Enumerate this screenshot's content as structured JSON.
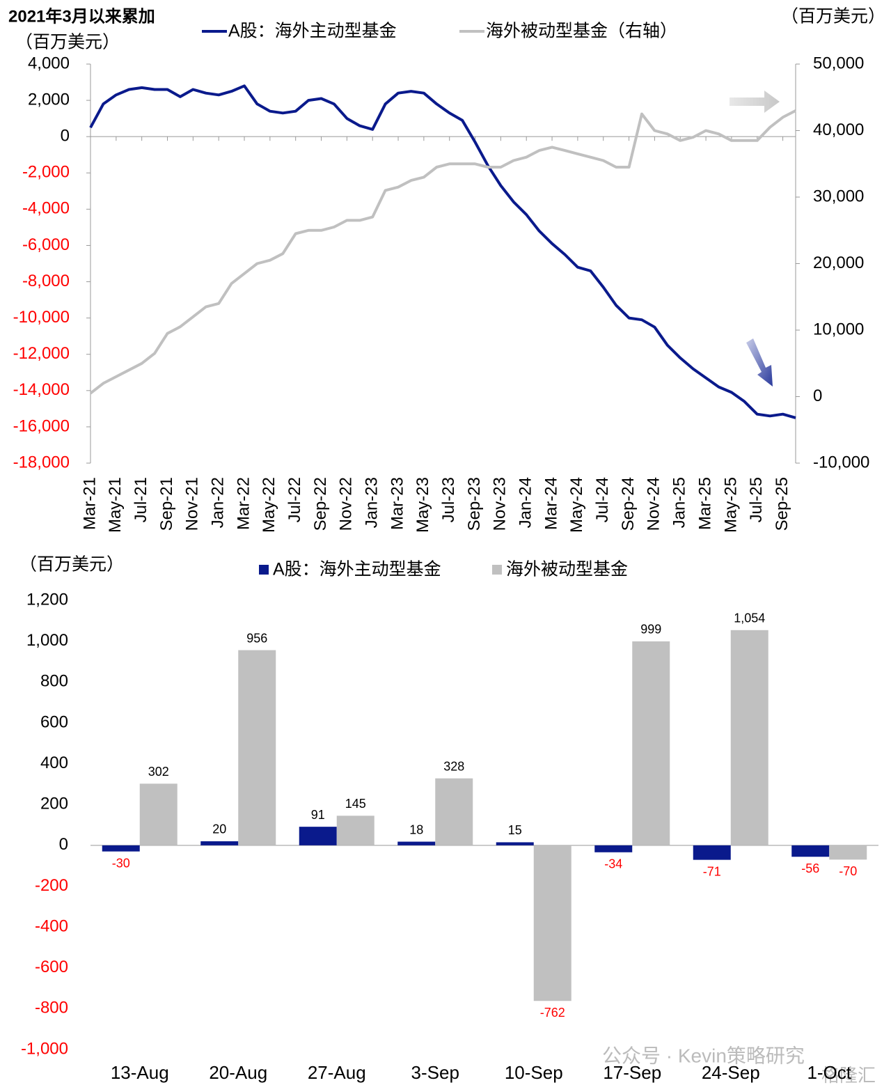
{
  "chart_data": [
    {
      "type": "line",
      "title": "2021年3月以来累加",
      "y_unit": "（百万美元）",
      "y2_unit": "（百万美元）",
      "categories": [
        "Mar-21",
        null,
        "May-21",
        null,
        "Jul-21",
        null,
        "Sep-21",
        null,
        "Nov-21",
        null,
        "Jan-22",
        null,
        "Mar-22",
        null,
        "May-22",
        null,
        "Jul-22",
        null,
        "Sep-22",
        null,
        "Nov-22",
        null,
        "Jan-23",
        null,
        "Mar-23",
        null,
        "May-23",
        null,
        "Jul-23",
        null,
        "Sep-23",
        null,
        "Nov-23",
        null,
        "Jan-24",
        null,
        "Mar-24",
        null,
        "May-24",
        null,
        "Jul-24",
        null,
        "Sep-24",
        null,
        "Nov-24",
        null,
        "Jan-25",
        null,
        "Mar-25",
        null,
        "May-25",
        null,
        "Jul-25",
        null,
        "Sep-25",
        null
      ],
      "series": [
        {
          "name": "A股：海外主动型基金",
          "color": "#0a1a8c",
          "values": [
            500,
            1800,
            2300,
            2600,
            2700,
            2600,
            2600,
            2200,
            2600,
            2400,
            2300,
            2500,
            2800,
            1800,
            1400,
            1300,
            1400,
            2000,
            2100,
            1800,
            1000,
            600,
            400,
            1800,
            2400,
            2500,
            2400,
            1800,
            1300,
            900,
            -300,
            -1600,
            -2700,
            -3600,
            -4300,
            -5200,
            -5900,
            -6500,
            -7200,
            -7400,
            -8300,
            -9300,
            -10000,
            -10100,
            -10500,
            -11500,
            -12200,
            -12800,
            -13300,
            -13800,
            -14100,
            -14600,
            -15300,
            -15400,
            -15300,
            -15500
          ]
        },
        {
          "name": "海外被动型基金（右轴）",
          "color": "#c0c0c0",
          "axis": "y2",
          "values": [
            500,
            2000,
            3000,
            4000,
            5000,
            6500,
            9500,
            10500,
            12000,
            13500,
            14000,
            17000,
            18500,
            20000,
            20500,
            21500,
            24500,
            25000,
            25000,
            25500,
            26500,
            26500,
            27000,
            31000,
            31500,
            32500,
            33000,
            34500,
            35000,
            35000,
            35000,
            34500,
            34500,
            35500,
            36000,
            37000,
            37500,
            37000,
            36500,
            36000,
            35500,
            34500,
            34500,
            42500,
            40000,
            39500,
            38500,
            39000,
            40000,
            39500,
            38500,
            38500,
            38500,
            40500,
            42000,
            43000
          ]
        }
      ],
      "ylim": [
        -18000,
        4000
      ],
      "yticks": [
        {
          "value": 4000,
          "label": "4,000"
        },
        {
          "value": 2000,
          "label": "2,000"
        },
        0,
        {
          "value": -2000,
          "label": "-2,000"
        },
        {
          "value": -4000,
          "label": "-4,000"
        },
        {
          "value": -6000,
          "label": "-6,000"
        },
        {
          "value": -8000,
          "label": "-8,000"
        },
        {
          "value": -10000,
          "label": "-10,000"
        },
        {
          "value": -12000,
          "label": "-12,000"
        },
        {
          "value": -14000,
          "label": "-14,000"
        },
        {
          "value": -16000,
          "label": "-16,000"
        },
        {
          "value": -18000,
          "label": "-18,000"
        }
      ],
      "y2lim": [
        -10000,
        50000
      ],
      "y2ticks": [
        {
          "value": 50000,
          "label": "50,000"
        },
        {
          "value": 40000,
          "label": "40,000"
        },
        {
          "value": 30000,
          "label": "30,000"
        },
        {
          "value": 20000,
          "label": "20,000"
        },
        {
          "value": 10000,
          "label": "10,000"
        },
        0,
        {
          "value": -10000,
          "label": "-10,000"
        }
      ],
      "negative_color": "#ff0000",
      "grid": false
    },
    {
      "type": "bar",
      "y_unit": "（百万美元）",
      "categories": [
        "13-Aug",
        "20-Aug",
        "27-Aug",
        "3-Sep",
        "10-Sep",
        "17-Sep",
        "24-Sep",
        "1-Oct"
      ],
      "series": [
        {
          "name": "A股：海外主动型基金",
          "color": "#0a1a8c",
          "values": [
            -30,
            20,
            91,
            18,
            15,
            -34,
            -71,
            -56
          ]
        },
        {
          "name": "海外被动型基金",
          "color": "#c0c0c0",
          "values": [
            302,
            956,
            145,
            328,
            -762,
            999,
            1054,
            -70
          ],
          "value_labels": [
            "302",
            "956",
            "145",
            "328",
            "-762",
            "999",
            "1,054",
            "-70"
          ]
        }
      ],
      "ylim": [
        -1000,
        1200
      ],
      "yticks": [
        {
          "value": 1200,
          "label": "1,200"
        },
        {
          "value": 1000,
          "label": "1,000"
        },
        800,
        600,
        400,
        200,
        0,
        -200,
        -400,
        -600,
        -800,
        {
          "value": -1000,
          "label": "-1,000"
        }
      ],
      "negative_color": "#ff0000",
      "grid": false
    }
  ],
  "watermark": [
    "公众号 · Kevin策略研究",
    "格隆汇"
  ]
}
